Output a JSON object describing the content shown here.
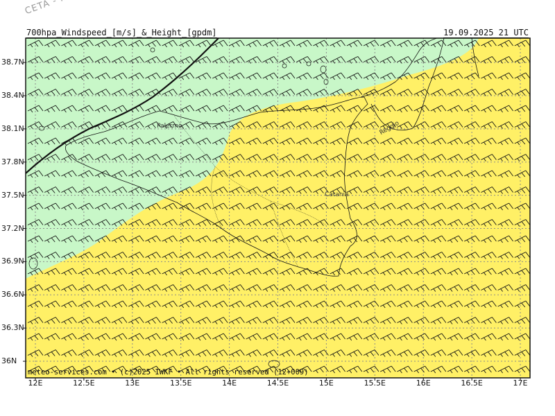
{
  "watermark": "CETA - Inc",
  "header": {
    "title": "700hpa_Windspeed_[m/s]_&_Height_[gpdm]",
    "timestamp": "19.09.2025 21 UTC"
  },
  "footer": "meteo-services.com • (c)2025 IWKF • All rights reserved (12+009)",
  "map": {
    "lon_range": [
      11.9,
      17.1
    ],
    "lat_range": [
      35.85,
      38.92
    ],
    "lat_ticks": [
      "38.7N",
      "38.4N",
      "38.1N",
      "37.8N",
      "37.5N",
      "37.2N",
      "36.9N",
      "36.6N",
      "36.3N",
      "36N"
    ],
    "lon_ticks": [
      "12E",
      "12.5E",
      "13E",
      "13.5E",
      "14E",
      "14.5E",
      "15E",
      "15.5E",
      "16E",
      "16.5E",
      "17E"
    ],
    "cities": [
      {
        "name": "Palermo",
        "lon": 13.36,
        "lat": 38.12
      },
      {
        "name": "Catania",
        "lon": 15.09,
        "lat": 37.5
      },
      {
        "name": "Reggio",
        "lon": 15.65,
        "lat": 38.1
      }
    ],
    "colors": {
      "low_wind": "#c8f7c8",
      "mid_wind": "#fff066",
      "coast": "#111111",
      "grid": "#8a8a8a",
      "barb": "#111111"
    },
    "wind_barbs": "westerly, ~15-20 m/s over the whole domain"
  }
}
